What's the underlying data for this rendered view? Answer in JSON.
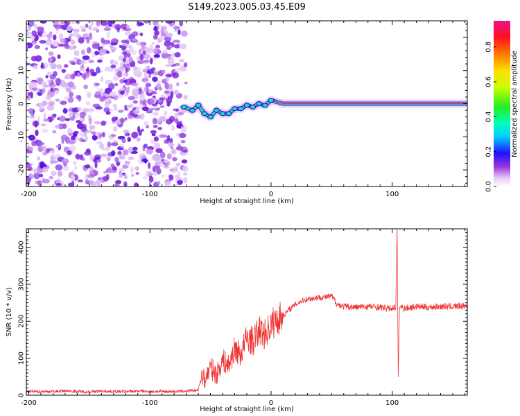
{
  "figure": {
    "title": "S149.2023.005.03.45.E09"
  },
  "chart_data": [
    {
      "type": "heatmap",
      "title": "",
      "xlabel": "Height of straight line (km)",
      "ylabel": "Frequency (Hz)",
      "xlim": [
        -202,
        162
      ],
      "ylim": [
        -25,
        25
      ],
      "xticks": [
        -200,
        -100,
        0,
        100
      ],
      "yticks": [
        -20,
        -10,
        0,
        10,
        20
      ],
      "colorbar": {
        "label": "Normalized spectral amplitude",
        "range": [
          0.0,
          0.95
        ],
        "ticks": [
          0.0,
          0.2,
          0.4,
          0.6,
          0.8
        ]
      },
      "noise_region_x": [
        -202,
        -70
      ],
      "signal_track": {
        "x": [
          -72,
          -65,
          -60,
          -55,
          -50,
          -45,
          -40,
          -35,
          -30,
          -25,
          -20,
          -15,
          -10,
          -5,
          0,
          10,
          20,
          40,
          60,
          80,
          100,
          120,
          140,
          162
        ],
        "frequency": [
          -1,
          -2,
          -0.5,
          -3,
          -4,
          -2,
          -3,
          -3,
          -1.5,
          -1.5,
          -0.5,
          -1,
          0,
          -0.5,
          1,
          0,
          0,
          0,
          0,
          0,
          0,
          0,
          0,
          0
        ]
      }
    },
    {
      "type": "line",
      "title": "",
      "xlabel": "Height of straight line (km)",
      "ylabel": "SNR (10 * v/v)",
      "xlim": [
        -202,
        162
      ],
      "ylim": [
        0,
        450
      ],
      "xticks": [
        -200,
        -100,
        0,
        100
      ],
      "yticks": [
        0,
        100,
        200,
        300,
        400
      ],
      "grid": false,
      "series": [
        {
          "color": "#ee3333",
          "x": [
            -202,
            -190,
            -180,
            -170,
            -160,
            -150,
            -140,
            -130,
            -120,
            -110,
            -100,
            -90,
            -80,
            -70,
            -65,
            -60,
            -57,
            -55,
            -50,
            -45,
            -40,
            -35,
            -30,
            -25,
            -20,
            -15,
            -10,
            -5,
            0,
            5,
            10,
            15,
            20,
            25,
            30,
            35,
            40,
            45,
            50,
            55,
            60,
            70,
            80,
            90,
            95,
            100,
            103,
            104,
            105,
            106,
            108,
            110,
            120,
            130,
            140,
            150,
            162
          ],
          "y": [
            10,
            10,
            10,
            12,
            10,
            9,
            11,
            10,
            10,
            11,
            10,
            10,
            10,
            11,
            12,
            14,
            60,
            40,
            75,
            55,
            95,
            80,
            125,
            110,
            155,
            145,
            175,
            165,
            190,
            205,
            215,
            232,
            245,
            255,
            260,
            262,
            265,
            265,
            268,
            245,
            240,
            238,
            240,
            238,
            235,
            235,
            240,
            450,
            50,
            240,
            238,
            235,
            240,
            238,
            240,
            240,
            242
          ]
        }
      ]
    }
  ]
}
